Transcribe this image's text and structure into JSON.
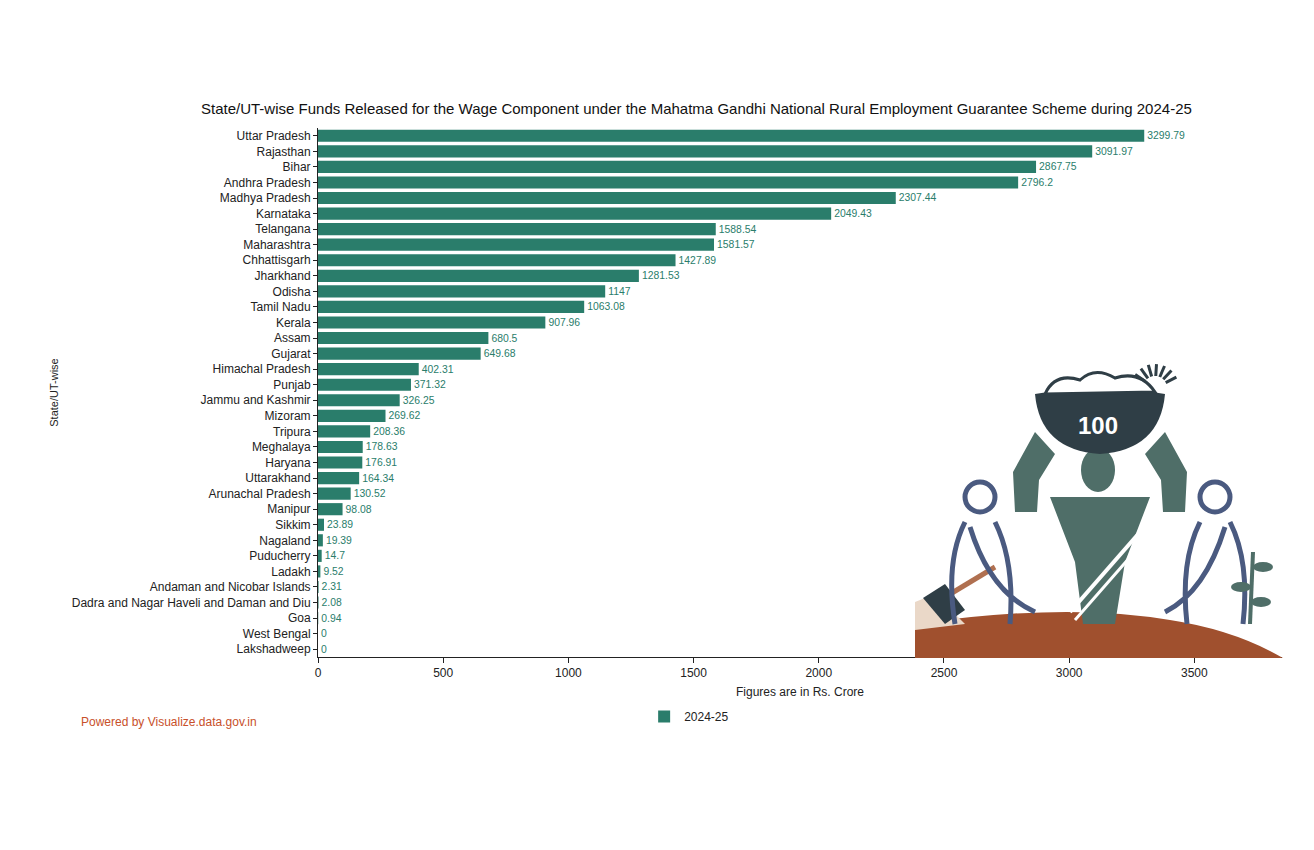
{
  "chart_data": {
    "type": "bar",
    "orientation": "horizontal",
    "title": "State/UT-wise Funds Released for the Wage Component under the Mahatma Gandhi National Rural Employment Guarantee Scheme during 2024-25",
    "xlabel": "Figures are in Rs. Crore",
    "ylabel": "State/UT-wise",
    "categories": [
      "Uttar Pradesh",
      "Rajasthan",
      "Bihar",
      "Andhra Pradesh",
      "Madhya Pradesh",
      "Karnataka",
      "Telangana",
      "Maharashtra",
      "Chhattisgarh",
      "Jharkhand",
      "Odisha",
      "Tamil Nadu",
      "Kerala",
      "Assam",
      "Gujarat",
      "Himachal Pradesh",
      "Punjab",
      "Jammu and Kashmir",
      "Mizoram",
      "Tripura",
      "Meghalaya",
      "Haryana",
      "Uttarakhand",
      "Arunachal Pradesh",
      "Manipur",
      "Sikkim",
      "Nagaland",
      "Puducherry",
      "Ladakh",
      "Andaman and Nicobar Islands",
      "Dadra and Nagar Haveli and Daman and Diu",
      "Goa",
      "West Bengal",
      "Lakshadweep"
    ],
    "series": [
      {
        "name": "2024-25",
        "color": "#2a7d6b",
        "values": [
          3299.79,
          3091.97,
          2867.75,
          2796.2,
          2307.44,
          2049.43,
          1588.54,
          1581.57,
          1427.89,
          1281.53,
          1147,
          1063.08,
          907.96,
          680.5,
          649.68,
          402.31,
          371.32,
          326.25,
          269.62,
          208.36,
          178.63,
          176.91,
          164.34,
          130.52,
          98.08,
          23.89,
          19.39,
          14.7,
          9.52,
          2.31,
          2.08,
          0.94,
          0,
          0
        ]
      }
    ],
    "xlim": [
      0,
      3850
    ],
    "xticks": [
      0,
      500,
      1000,
      1500,
      2000,
      2500,
      3000,
      3500
    ],
    "grid": false,
    "legend": "bottom",
    "data_labels": true,
    "annotations": [
      "Powered by Visualize.data.gov.in",
      "100"
    ]
  }
}
